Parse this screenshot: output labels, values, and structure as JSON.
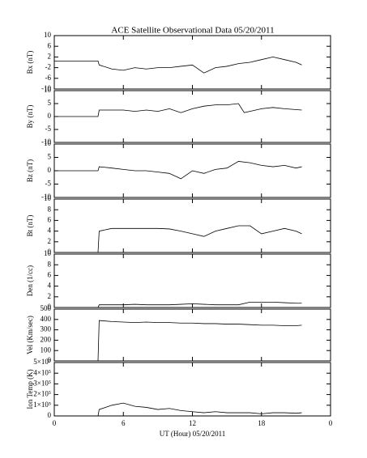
{
  "chart_data": [
    {
      "type": "line",
      "title": "ACE Satellite Observational Data   05/20/2011",
      "ylabel": "Bx (nT)",
      "x": [
        0,
        3.8,
        3.9,
        5,
        6,
        7,
        8,
        9,
        10,
        11,
        12,
        13,
        14,
        15,
        16,
        17,
        18,
        19,
        20,
        21,
        21.5
      ],
      "values": [
        0.5,
        0.5,
        -1,
        -2.5,
        -3,
        -2,
        -2.5,
        -2,
        -2,
        -1.5,
        -1,
        -4,
        -2,
        -1.5,
        -0.5,
        0,
        1,
        2,
        1,
        0,
        -1
      ],
      "xlim": [
        0,
        24
      ],
      "xticks": [
        0,
        6,
        12,
        18,
        {
          "value": 24,
          "label": "0"
        }
      ],
      "ylim": [
        -10,
        10
      ],
      "yticks": [
        -10,
        -6,
        -2,
        2,
        6,
        10
      ],
      "color": "#000000"
    },
    {
      "type": "line",
      "ylabel": "By (nT)",
      "x": [
        0,
        3.8,
        3.9,
        5,
        6,
        7,
        8,
        9,
        10,
        11,
        12,
        13,
        14,
        15,
        16,
        16.5,
        17,
        18,
        19,
        20,
        21.5
      ],
      "values": [
        0,
        0,
        2.5,
        2.5,
        2.5,
        2,
        2.5,
        2,
        3,
        1.5,
        3,
        4,
        4.5,
        4.5,
        5,
        1.5,
        2,
        3,
        3.5,
        3,
        2.5
      ],
      "xlim": [
        0,
        24
      ],
      "xticks": [
        0,
        6,
        12,
        18,
        {
          "value": 24,
          "label": "0"
        }
      ],
      "ylim": [
        -10,
        10
      ],
      "yticks": [
        -10,
        -5,
        0,
        5,
        10
      ],
      "color": "#000000"
    },
    {
      "type": "line",
      "ylabel": "Bz (nT)",
      "x": [
        0,
        3.8,
        3.9,
        5,
        6,
        7,
        8,
        9,
        10,
        11,
        12,
        13,
        14,
        15,
        16,
        17,
        18,
        19,
        20,
        21,
        21.5
      ],
      "values": [
        0,
        0,
        1.5,
        1,
        0.5,
        0,
        0,
        -0.5,
        -1,
        -3,
        0,
        -1,
        0.5,
        1,
        3.5,
        3,
        2,
        1.5,
        2,
        1,
        1.5
      ],
      "xlim": [
        0,
        24
      ],
      "xticks": [
        0,
        6,
        12,
        18,
        {
          "value": 24,
          "label": "0"
        }
      ],
      "ylim": [
        -10,
        10
      ],
      "yticks": [
        -10,
        -5,
        0,
        5,
        10
      ],
      "color": "#000000"
    },
    {
      "type": "line",
      "ylabel": "Bt (nT)",
      "x": [
        0,
        3.8,
        3.9,
        5,
        6,
        7,
        8,
        9,
        10,
        11,
        12,
        13,
        14,
        15,
        16,
        17,
        18,
        19,
        20,
        21,
        21.5
      ],
      "values": [
        0,
        0,
        4,
        4.5,
        4.5,
        4.5,
        4.5,
        4.5,
        4.4,
        4,
        3.5,
        3,
        4,
        4.5,
        5,
        5,
        3.5,
        4,
        4.5,
        4,
        3.5
      ],
      "xlim": [
        0,
        24
      ],
      "xticks": [
        0,
        6,
        12,
        18,
        {
          "value": 24,
          "label": "0"
        }
      ],
      "ylim": [
        0,
        10
      ],
      "yticks": [
        0,
        2,
        4,
        6,
        8,
        10
      ],
      "color": "#000000"
    },
    {
      "type": "line",
      "ylabel": "Den (1/cc)",
      "x": [
        0,
        3.8,
        3.9,
        5,
        6,
        7,
        8,
        9,
        10,
        11,
        12,
        13,
        14,
        15,
        16,
        17,
        18,
        19,
        20,
        21,
        21.5
      ],
      "values": [
        0,
        0,
        0.5,
        0.5,
        0.5,
        0.6,
        0.5,
        0.5,
        0.5,
        0.6,
        0.7,
        0.6,
        0.5,
        0.5,
        0.5,
        1,
        1,
        1,
        0.9,
        0.8,
        0.8
      ],
      "xlim": [
        0,
        24
      ],
      "xticks": [
        0,
        6,
        12,
        18,
        {
          "value": 24,
          "label": "0"
        }
      ],
      "ylim": [
        0,
        10
      ],
      "yticks": [
        0,
        2,
        4,
        6,
        8,
        10
      ],
      "color": "#000000"
    },
    {
      "type": "line",
      "ylabel": "Vel (Km/sec)",
      "x": [
        0,
        3.8,
        3.9,
        5,
        6,
        7,
        8,
        9,
        10,
        11,
        12,
        13,
        14,
        15,
        16,
        17,
        18,
        19,
        20,
        21,
        21.5
      ],
      "values": [
        0,
        0,
        390,
        380,
        375,
        370,
        375,
        370,
        370,
        365,
        365,
        360,
        360,
        355,
        355,
        350,
        345,
        345,
        340,
        340,
        345
      ],
      "xlim": [
        0,
        24
      ],
      "xticks": [
        0,
        6,
        12,
        18,
        {
          "value": 24,
          "label": "0"
        }
      ],
      "ylim": [
        0,
        500
      ],
      "yticks": [
        0,
        100,
        200,
        300,
        400,
        500
      ],
      "color": "#000000"
    },
    {
      "type": "line",
      "ylabel": "Ion Temp (K)",
      "xlabel": "UT (Hour)   05/20/2011",
      "x": [
        3.8,
        3.9,
        5,
        6,
        7,
        8,
        9,
        10,
        11,
        12,
        13,
        14,
        15,
        16,
        17,
        18,
        19,
        20,
        21,
        21.5
      ],
      "values": [
        0,
        60000,
        100000,
        120000,
        90000,
        80000,
        60000,
        70000,
        50000,
        40000,
        30000,
        40000,
        30000,
        30000,
        30000,
        20000,
        30000,
        30000,
        25000,
        30000
      ],
      "xlim": [
        0,
        24
      ],
      "xticks": [
        0,
        6,
        12,
        18,
        {
          "value": 24,
          "label": "0"
        }
      ],
      "ylim": [
        0,
        500000
      ],
      "yticks": [
        0,
        {
          "value": 100000,
          "label": "1×10⁵"
        },
        {
          "value": 200000,
          "label": "2×10⁵"
        },
        {
          "value": 300000,
          "label": "3×10⁵"
        },
        {
          "value": 400000,
          "label": "4×10⁵"
        },
        {
          "value": 500000,
          "label": "5×10⁵"
        }
      ],
      "color": "#000000"
    }
  ]
}
